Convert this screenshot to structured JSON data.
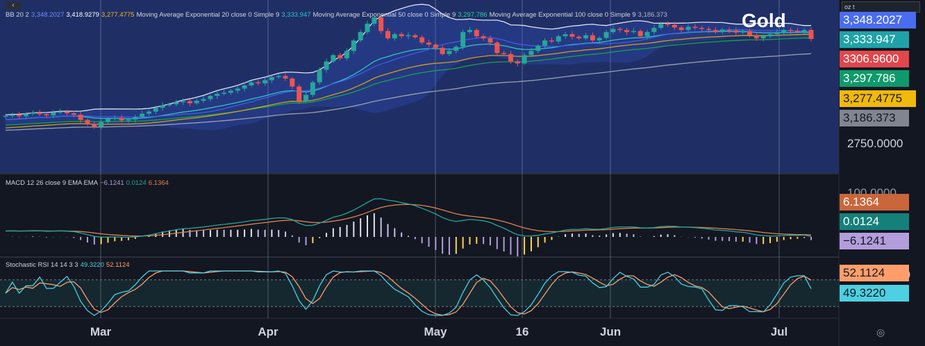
{
  "symbol": "Gold",
  "unit": "oz t",
  "collapse_icon": "‹",
  "settings_icon": "◎",
  "colors": {
    "main_bg": "#1f2f66",
    "pane_bg": "#131722",
    "up": "#26a69a",
    "down": "#ef5350",
    "bb_band": "#e0e3eb",
    "bb_basis": "#3c5eea",
    "ema20": "#2fc5c5",
    "ema50": "#16a34a",
    "ema100": "#9aa0ae",
    "ema_slow": "#d4a017"
  },
  "legend": [
    {
      "text": "BB 20 2",
      "color": "#d1d4dc"
    },
    {
      "text": "3,348.2027",
      "color": "#6f8cff"
    },
    {
      "text": "3,418.9279",
      "color": "#ffffff"
    },
    {
      "text": "3,277.4775",
      "color": "#f2b61e"
    },
    {
      "text": "Moving Average Exponential 20 close 0 Simple 9",
      "color": "#d1d4dc"
    },
    {
      "text": "3,333.947",
      "color": "#2fc5c5"
    },
    {
      "text": "Moving Average Exponential 50 close 0 Simple 9",
      "color": "#d1d4dc"
    },
    {
      "text": "3,297.786",
      "color": "#2bd192"
    },
    {
      "text": "Moving Average Exponential 100 close 0 Simple 9",
      "color": "#d1d4dc"
    },
    {
      "text": "3,186.373",
      "color": "#b2b5be"
    }
  ],
  "macd_legend": [
    {
      "text": "MACD 12 26 close 9 EMA EMA",
      "color": "#d1d4dc"
    },
    {
      "text": "−6.1241",
      "color": "#b39ddb"
    },
    {
      "text": "0.0124",
      "color": "#26a69a"
    },
    {
      "text": "6.1364",
      "color": "#e08050"
    }
  ],
  "stoch_legend": [
    {
      "text": "Stochastic RSI 14 14 3 3",
      "color": "#d1d4dc"
    },
    {
      "text": "49.3220",
      "color": "#4dd0e1"
    },
    {
      "text": "52.1124",
      "color": "#ff9e6b"
    }
  ],
  "price_badges": [
    {
      "text": "3,348.2027",
      "bg": "#4a6cf0",
      "fg": "#ffffff"
    },
    {
      "text": "3,333.947",
      "bg": "#1fa3a8",
      "fg": "#ffffff"
    },
    {
      "text": "3306.9600",
      "bg": "#e0474c",
      "fg": "#ffffff"
    },
    {
      "text": "3,297.786",
      "bg": "#0f9a6b",
      "fg": "#ffffff"
    },
    {
      "text": "3,277.4775",
      "bg": "#f0b90b",
      "fg": "#131722"
    },
    {
      "text": "3,186.373",
      "bg": "#808590",
      "fg": "#131722"
    }
  ],
  "price_scale_label": "2750.0000",
  "macd_badges": [
    {
      "text": "6.1364",
      "bg": "#c9663b",
      "fg": "#ffffff"
    },
    {
      "text": "0.0124",
      "bg": "#15807a",
      "fg": "#ffffff"
    },
    {
      "text": "−6.1241",
      "bg": "#b39ddb",
      "fg": "#131722"
    }
  ],
  "macd_scale_partial": "100.0000",
  "stoch_badges": [
    {
      "text": "52.1124",
      "bg": "#ff9e6b",
      "fg": "#131722"
    },
    {
      "text": "49.3220",
      "bg": "#4dd0e1",
      "fg": "#131722"
    }
  ],
  "stoch_scale_partial": "80",
  "chart_data": {
    "type": "candlestick",
    "x_labels": [
      "Mar",
      "Apr",
      "May",
      "16",
      "Jun",
      "Jul"
    ],
    "close_prices": [
      2940,
      2945,
      2938,
      2950,
      2955,
      2948,
      2942,
      2956,
      2960,
      2952,
      2945,
      2920,
      2900,
      2888,
      2910,
      2925,
      2930,
      2918,
      2922,
      2935,
      2950,
      2960,
      2978,
      2990,
      2995,
      3005,
      3010,
      3000,
      3012,
      3020,
      3035,
      3045,
      3050,
      3060,
      3070,
      3085,
      3100,
      3095,
      3110,
      3125,
      3130,
      3118,
      3080,
      3010,
      3040,
      3100,
      3160,
      3200,
      3230,
      3215,
      3250,
      3300,
      3340,
      3380,
      3410,
      3345,
      3310,
      3330,
      3320,
      3325,
      3315,
      3290,
      3280,
      3265,
      3235,
      3250,
      3270,
      3340,
      3350,
      3320,
      3310,
      3290,
      3240,
      3235,
      3200,
      3190,
      3230,
      3250,
      3275,
      3300,
      3295,
      3320,
      3330,
      3318,
      3310,
      3325,
      3300,
      3312,
      3340,
      3355,
      3350,
      3340,
      3345,
      3320,
      3340,
      3360,
      3380,
      3375,
      3362,
      3350,
      3365,
      3360,
      3355,
      3350,
      3340,
      3352,
      3348,
      3338,
      3345,
      3325,
      3310,
      3320,
      3330,
      3340,
      3350,
      3345,
      3342,
      3350,
      3306.96
    ],
    "overlays": {
      "bb_basis_last": 3348.2027,
      "bb_upper_last": 3418.9279,
      "bb_lower_last": 3277.4775,
      "ema20_last": 3333.947,
      "ema50_last": 3297.786,
      "ema100_last": 3186.373
    },
    "macd": {
      "macd": -6.1241,
      "signal": 0.0124,
      "hist": 6.1364
    },
    "stoch_rsi": {
      "k": 49.322,
      "d": 52.1124,
      "upper_band": 80,
      "lower_band": 20
    }
  }
}
